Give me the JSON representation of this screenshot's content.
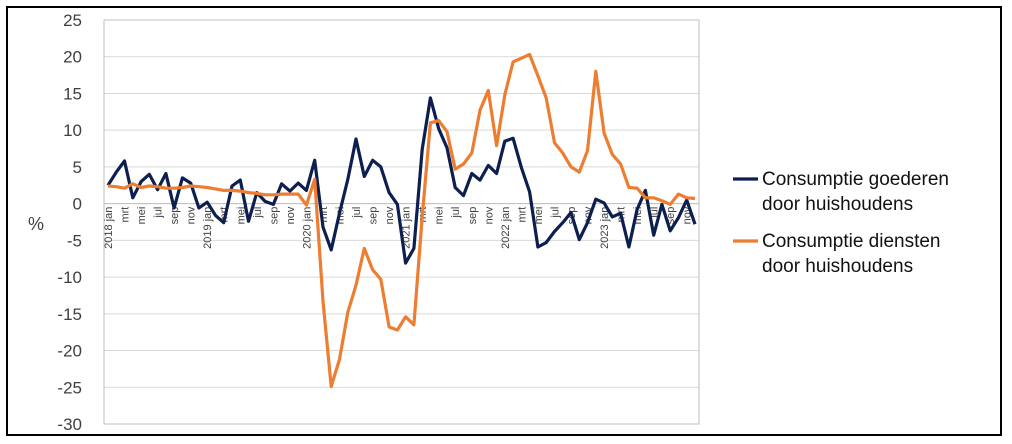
{
  "chart_data": {
    "type": "line",
    "title": "",
    "xlabel": "",
    "ylabel": "%",
    "ylim": [
      -30,
      25
    ],
    "yticks": [
      25,
      20,
      15,
      10,
      5,
      0,
      -5,
      -10,
      -15,
      -20,
      -25,
      -30
    ],
    "grid": "horizontal",
    "legend_position": "right",
    "x_tick_labels": [
      {
        "i": 0,
        "label": "2018 jan"
      },
      {
        "i": 2,
        "label": "mrt"
      },
      {
        "i": 4,
        "label": "mei"
      },
      {
        "i": 6,
        "label": "jul"
      },
      {
        "i": 8,
        "label": "sep"
      },
      {
        "i": 10,
        "label": "nov"
      },
      {
        "i": 12,
        "label": "2019 jan"
      },
      {
        "i": 14,
        "label": "mrt"
      },
      {
        "i": 16,
        "label": "mei"
      },
      {
        "i": 18,
        "label": "jul"
      },
      {
        "i": 20,
        "label": "sep"
      },
      {
        "i": 22,
        "label": "nov"
      },
      {
        "i": 24,
        "label": "2020 jan"
      },
      {
        "i": 26,
        "label": "mrt"
      },
      {
        "i": 28,
        "label": "mei"
      },
      {
        "i": 30,
        "label": "jul"
      },
      {
        "i": 32,
        "label": "sep"
      },
      {
        "i": 34,
        "label": "nov"
      },
      {
        "i": 36,
        "label": "2021 jan"
      },
      {
        "i": 38,
        "label": "mrt"
      },
      {
        "i": 40,
        "label": "mei"
      },
      {
        "i": 42,
        "label": "jul"
      },
      {
        "i": 44,
        "label": "sep"
      },
      {
        "i": 46,
        "label": "nov"
      },
      {
        "i": 48,
        "label": "2022 jan"
      },
      {
        "i": 50,
        "label": "mrt"
      },
      {
        "i": 52,
        "label": "mei"
      },
      {
        "i": 54,
        "label": "jul"
      },
      {
        "i": 56,
        "label": "sep"
      },
      {
        "i": 58,
        "label": "nov"
      },
      {
        "i": 60,
        "label": "2023 jan"
      },
      {
        "i": 62,
        "label": "mrt"
      },
      {
        "i": 64,
        "label": "mei"
      },
      {
        "i": 66,
        "label": "jul"
      },
      {
        "i": 68,
        "label": "sep"
      },
      {
        "i": 70,
        "label": "nov"
      }
    ],
    "series": [
      {
        "name": "Consumptie goederen door huishoudens",
        "color": "#0d1f4f",
        "values": [
          2.5,
          4.3,
          5.8,
          0.8,
          3,
          4,
          1.9,
          4.1,
          -0.6,
          3.5,
          2.8,
          -0.6,
          0.2,
          -1.6,
          -2.6,
          2.4,
          3.2,
          -2.4,
          1.5,
          0.3,
          -0.1,
          2.7,
          1.7,
          2.8,
          1.8,
          5.9,
          -3.2,
          -6.3,
          -1.3,
          3.3,
          8.8,
          3.7,
          5.9,
          5,
          1.5,
          -0.1,
          -8.1,
          -6.1,
          7.4,
          14.4,
          10.2,
          7.6,
          2.2,
          1.1,
          4.1,
          3.2,
          5.2,
          4.1,
          8.5,
          8.9,
          4.9,
          1.6,
          -5.9,
          -5.3,
          -3.8,
          -2.6,
          -1.2,
          -4.9,
          -2.6,
          0.6,
          0.1,
          -1.8,
          -1.3,
          -5.9,
          -0.8,
          1.8,
          -4.3,
          -0.1,
          -3.7,
          -1.9,
          0.5,
          -2.8
        ]
      },
      {
        "name": "Consumptie diensten door huishoudens",
        "color": "#ed7d31",
        "values": [
          2.4,
          2.3,
          2.1,
          2.7,
          2.2,
          2.4,
          2.3,
          2.1,
          2.1,
          2.2,
          2.4,
          2.3,
          2.2,
          2.0,
          1.8,
          1.8,
          1.7,
          1.5,
          1.4,
          1.2,
          1.2,
          1.3,
          1.3,
          1.3,
          -0.2,
          3.3,
          -13.3,
          -24.9,
          -21.2,
          -14.8,
          -11.1,
          -6.1,
          -9.0,
          -10.3,
          -16.8,
          -17.2,
          -15.4,
          -16.5,
          -1.8,
          11.0,
          11.3,
          9.8,
          4.7,
          5.4,
          6.9,
          12.7,
          15.4,
          7.9,
          14.8,
          19.3,
          19.8,
          20.3,
          17.4,
          14.4,
          8.3,
          6.9,
          5.0,
          4.3,
          7.2,
          18.0,
          9.6,
          6.7,
          5.4,
          2.2,
          2.1,
          0.8,
          0.8,
          0.4,
          -0.1,
          1.3,
          0.8,
          0.7
        ]
      }
    ]
  }
}
